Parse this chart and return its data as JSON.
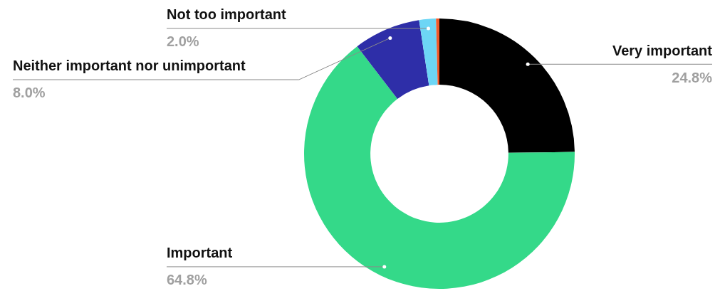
{
  "chart_data": {
    "type": "donut",
    "categories": [
      "Very important",
      "Important",
      "Neither important nor unimportant",
      "Not too important",
      null
    ],
    "values": [
      24.8,
      64.8,
      8.0,
      2.0,
      0.4
    ],
    "colors": [
      "#000000",
      "#34d989",
      "#2e2ea8",
      "#6dd6f5",
      "#f0592a"
    ],
    "value_labels": [
      "24.8%",
      "64.8%",
      "8.0%",
      "2.0%",
      null
    ],
    "legend": false
  }
}
